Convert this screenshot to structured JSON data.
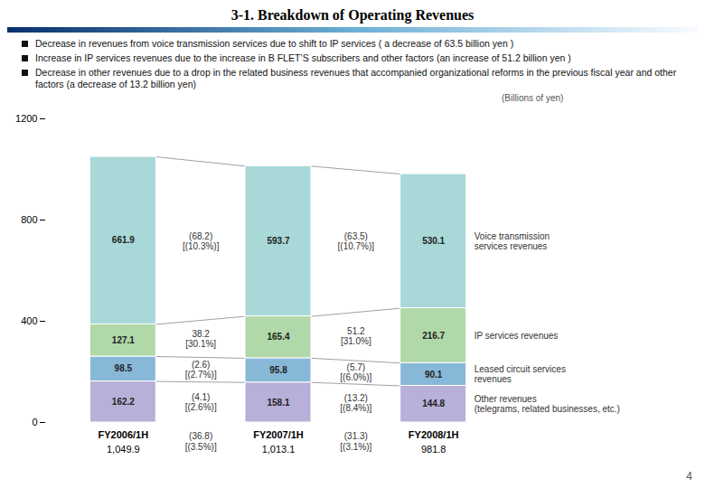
{
  "chart_data": {
    "type": "bar",
    "title": "3-1. Breakdown of Operating Revenues",
    "subtitle": "(Billions of yen)",
    "categories": [
      "FY2006/1H",
      "FY2007/1H",
      "FY2008/1H"
    ],
    "series": [
      {
        "name": "Other revenues\n(telegrams, related businesses, etc.)",
        "color": "#b8b0d8",
        "values": [
          162.2,
          158.1,
          144.8
        ]
      },
      {
        "name": "Leased circuit services\nrevenues",
        "color": "#88b8d8",
        "values": [
          98.5,
          95.8,
          90.1
        ]
      },
      {
        "name": "IP services revenues",
        "color": "#b0d8a8",
        "values": [
          127.1,
          165.4,
          216.7
        ]
      },
      {
        "name": "Voice transmission\nservices revenues",
        "color": "#a8d8d8",
        "values": [
          661.9,
          593.7,
          530.1
        ]
      }
    ],
    "stacked": true,
    "data_labels": true,
    "ylim": [
      0,
      1200
    ],
    "yticks": [
      0,
      400,
      800,
      1200
    ],
    "total_labels": [
      "1,049.9",
      "1,013.1",
      "981.8"
    ],
    "changes": [
      {
        "values": [
          [
            "(4.1)",
            "[(2.6%)]"
          ],
          [
            "(2.6)",
            "[(2.7%)]"
          ],
          [
            "38.2",
            "[30.1%]"
          ],
          [
            "(68.2)",
            "[(10.3%)]"
          ]
        ],
        "total": [
          "(36.8)",
          "[(3.5%)]"
        ]
      },
      {
        "values": [
          [
            "(13.2)",
            "[(8.4%)]"
          ],
          [
            "(5.7)",
            "[(6.0%)]"
          ],
          [
            "51.2",
            "[31.0%]"
          ],
          [
            "(63.5)",
            "[(10.7%)]"
          ]
        ],
        "total": [
          "(31.3)",
          "[(3.1%)]"
        ]
      }
    ],
    "notes": [
      "Decrease in revenues from voice transmission services due to shift to IP services ( a decrease of 63.5 billion yen )",
      "Increase in IP services revenues due to the increase in B FLET’S subscribers and other factors (an increase of 51.2 billion yen )",
      "Decrease in other revenues due to a drop in the related business revenues that accompanied organizational reforms in the previous fiscal year and other factors (a decrease of 13.2 billion yen)"
    ],
    "page_number": "4"
  }
}
